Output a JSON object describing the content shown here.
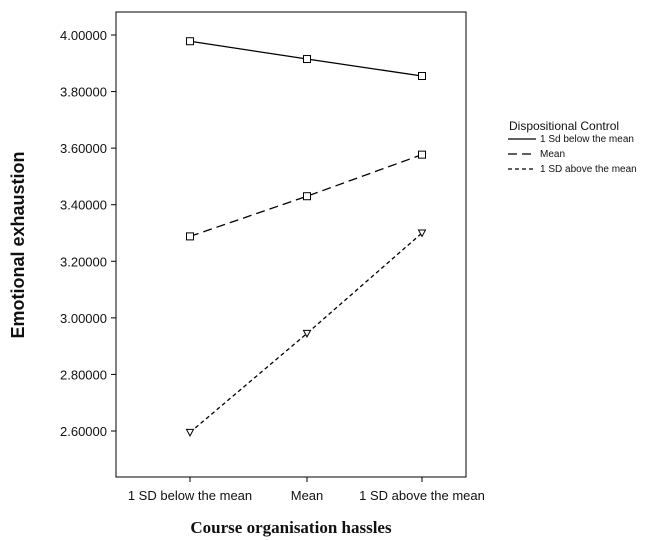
{
  "chart_data": {
    "type": "line",
    "xlabel": "Course organisation hassles",
    "ylabel": "Emotional exhaustion",
    "categories": [
      "1 SD below the mean",
      "Mean",
      "1 SD above the mean"
    ],
    "ylim": [
      2.5,
      4.08
    ],
    "y_ticks": [
      "2.60000",
      "2.80000",
      "3.00000",
      "3.20000",
      "3.40000",
      "3.60000",
      "3.80000",
      "4.00000"
    ],
    "y_tick_values": [
      2.6,
      2.8,
      3.0,
      3.2,
      3.4,
      3.6,
      3.8,
      4.0
    ],
    "grid": false,
    "legend": {
      "title": "Dispositional Control",
      "placement": "right"
    },
    "series": [
      {
        "name": "1 Sd below the mean",
        "values": [
          3.978,
          3.915,
          3.855
        ],
        "line_style": "solid",
        "marker": "square"
      },
      {
        "name": "Mean",
        "values": [
          3.288,
          3.43,
          3.577
        ],
        "line_style": "dashed",
        "marker": "square"
      },
      {
        "name": "1 SD above the mean",
        "values": [
          2.595,
          2.945,
          3.3
        ],
        "line_style": "dotted",
        "marker": "triangle-down"
      }
    ]
  }
}
